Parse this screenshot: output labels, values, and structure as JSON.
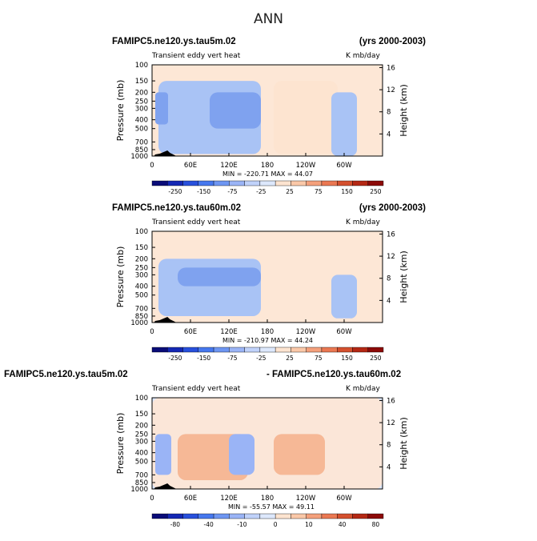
{
  "figure": {
    "title": "ANN"
  },
  "panels": [
    {
      "case_left": "FAMIPC5.ne120.ys.tau5m.02",
      "case_right": "(yrs 2000-2003)",
      "field": "Transient eddy vert heat",
      "units": "K mb/day",
      "stats": "MIN = -220.71   MAX =  44.07"
    },
    {
      "case_left": "FAMIPC5.ne120.ys.tau60m.02",
      "case_right": "(yrs 2000-2003)",
      "field": "Transient eddy vert heat",
      "units": "K mb/day",
      "stats": "MIN = -210.97   MAX =  44.24"
    },
    {
      "case_left": "FAMIPC5.ne120.ys.tau5m.02",
      "case_right": "- FAMIPC5.ne120.ys.tau60m.02",
      "field": "Transient eddy vert heat",
      "units": "K mb/day",
      "stats": "MIN = -55.57   MAX =  49.11"
    }
  ],
  "chart_data": [
    {
      "type": "heatmap",
      "title": "FAMIPC5.ne120.ys.tau5m.02",
      "subtitle": "Transient eddy vert heat",
      "ylabel": "Pressure (mb)",
      "ylabel_right": "Height (km)",
      "x_ticks": [
        "0",
        "60E",
        "120E",
        "180",
        "120W",
        "60W"
      ],
      "x_tick_values": [
        0,
        60,
        120,
        180,
        240,
        300
      ],
      "xlim": [
        0,
        360
      ],
      "y_ticks": [
        "100",
        "150",
        "200",
        "250",
        "300",
        "400",
        "500",
        "700",
        "850",
        "1000"
      ],
      "y_tick_values": [
        100,
        150,
        200,
        250,
        300,
        400,
        500,
        700,
        850,
        1000
      ],
      "ylim": [
        1000,
        100
      ],
      "right_ticks": [
        "4",
        "8",
        "12",
        "16"
      ],
      "right_tick_values": [
        4,
        8,
        12,
        16
      ],
      "colorbar_labels": [
        "-250",
        "-150",
        "-75",
        "-25",
        "25",
        "75",
        "150",
        "250"
      ],
      "colorbar_colors": [
        "#0a0c78",
        "#1428b4",
        "#2850dc",
        "#4678ee",
        "#6e96f2",
        "#9ab4f6",
        "#c0d2fa",
        "#dde8fc",
        "#fde4d0",
        "#fac8a8",
        "#f4a07c",
        "#ea7852",
        "#d4502e",
        "#b42814",
        "#8c0a08"
      ],
      "min": -220.71,
      "max": 44.07,
      "regions": [
        {
          "lon": [
            10,
            170
          ],
          "p": [
            150,
            950
          ],
          "level": "-25..-75"
        },
        {
          "lon": [
            5,
            25
          ],
          "p": [
            200,
            450
          ],
          "level": "-75..-150"
        },
        {
          "lon": [
            90,
            170
          ],
          "p": [
            200,
            500
          ],
          "level": "-75..-150"
        },
        {
          "lon": [
            190,
            290
          ],
          "p": [
            150,
            950
          ],
          "level": "25..75"
        },
        {
          "lon": [
            280,
            320
          ],
          "p": [
            200,
            1000
          ],
          "level": "-25..-75"
        }
      ]
    },
    {
      "type": "heatmap",
      "title": "FAMIPC5.ne120.ys.tau60m.02",
      "subtitle": "Transient eddy vert heat",
      "ylabel": "Pressure (mb)",
      "ylabel_right": "Height (km)",
      "x_ticks": [
        "0",
        "60E",
        "120E",
        "180",
        "120W",
        "60W"
      ],
      "x_tick_values": [
        0,
        60,
        120,
        180,
        240,
        300
      ],
      "xlim": [
        0,
        360
      ],
      "y_ticks": [
        "100",
        "150",
        "200",
        "250",
        "300",
        "400",
        "500",
        "700",
        "850",
        "1000"
      ],
      "y_tick_values": [
        100,
        150,
        200,
        250,
        300,
        400,
        500,
        700,
        850,
        1000
      ],
      "ylim": [
        1000,
        100
      ],
      "right_ticks": [
        "4",
        "8",
        "12",
        "16"
      ],
      "right_tick_values": [
        4,
        8,
        12,
        16
      ],
      "colorbar_labels": [
        "-250",
        "-150",
        "-75",
        "-25",
        "25",
        "75",
        "150",
        "250"
      ],
      "colorbar_colors": [
        "#0a0c78",
        "#1428b4",
        "#2850dc",
        "#4678ee",
        "#6e96f2",
        "#9ab4f6",
        "#c0d2fa",
        "#dde8fc",
        "#fde4d0",
        "#fac8a8",
        "#f4a07c",
        "#ea7852",
        "#d4502e",
        "#b42814",
        "#8c0a08"
      ],
      "min": -210.97,
      "max": 44.24,
      "regions": [
        {
          "lon": [
            10,
            170
          ],
          "p": [
            200,
            850
          ],
          "level": "-25..-75"
        },
        {
          "lon": [
            40,
            170
          ],
          "p": [
            250,
            400
          ],
          "level": "-75..-150"
        },
        {
          "lon": [
            280,
            320
          ],
          "p": [
            300,
            900
          ],
          "level": "-25..-75"
        }
      ]
    },
    {
      "type": "heatmap",
      "title": "FAMIPC5.ne120.ys.tau5m.02 - FAMIPC5.ne120.ys.tau60m.02",
      "subtitle": "Transient eddy vert heat",
      "ylabel": "Pressure (mb)",
      "ylabel_right": "Height (km)",
      "x_ticks": [
        "0",
        "60E",
        "120E",
        "180",
        "120W",
        "60W"
      ],
      "x_tick_values": [
        0,
        60,
        120,
        180,
        240,
        300
      ],
      "xlim": [
        0,
        360
      ],
      "y_ticks": [
        "100",
        "150",
        "200",
        "250",
        "300",
        "400",
        "500",
        "700",
        "850",
        "1000"
      ],
      "y_tick_values": [
        100,
        150,
        200,
        250,
        300,
        400,
        500,
        700,
        850,
        1000
      ],
      "ylim": [
        1000,
        100
      ],
      "right_ticks": [
        "4",
        "8",
        "12",
        "16"
      ],
      "right_tick_values": [
        4,
        8,
        12,
        16
      ],
      "colorbar_labels": [
        "-80",
        "-40",
        "-10",
        "0",
        "10",
        "40",
        "80"
      ],
      "colorbar_colors": [
        "#0a0c78",
        "#1428b4",
        "#2850dc",
        "#4678ee",
        "#6e96f2",
        "#9ab4f6",
        "#c0d2fa",
        "#dde8fc",
        "#fde4d0",
        "#fac8a8",
        "#f4a07c",
        "#ea7852",
        "#d4502e",
        "#b42814",
        "#8c0a08"
      ],
      "min": -55.57,
      "max": 49.11,
      "regions": [
        {
          "lon": [
            0,
            360
          ],
          "p": [
            100,
            1000
          ],
          "level": "-10..10"
        },
        {
          "lon": [
            40,
            150
          ],
          "p": [
            250,
            800
          ],
          "level": "10..40"
        },
        {
          "lon": [
            190,
            270
          ],
          "p": [
            250,
            700
          ],
          "level": "10..40"
        },
        {
          "lon": [
            5,
            30
          ],
          "p": [
            250,
            700
          ],
          "level": "-10..-40"
        },
        {
          "lon": [
            120,
            160
          ],
          "p": [
            250,
            700
          ],
          "level": "-10..-40"
        }
      ]
    }
  ]
}
